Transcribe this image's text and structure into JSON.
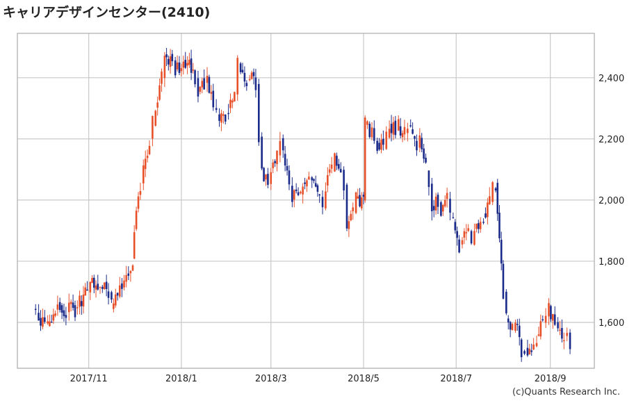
{
  "chart_data": {
    "type": "candlestick",
    "title": "キャリアデザインセンター(2410)",
    "copyright": "(c)Quants Research Inc.",
    "colors": {
      "up": "#e8502a",
      "down": "#1a2a8a",
      "grid": "#c8c8c8",
      "frame": "#aaaaaa"
    },
    "y_axis": {
      "side": "right",
      "range": [
        1450,
        2545
      ],
      "ticks": [
        1600,
        1800,
        2000,
        2200,
        2400
      ],
      "tick_labels": [
        "1,600",
        "1,800",
        "2,000",
        "2,200",
        "2,400"
      ]
    },
    "x_axis": {
      "range": [
        "2017-09-15",
        "2018-09-30"
      ],
      "ticks": [
        {
          "date": "2017-11-01",
          "label": "2017/11"
        },
        {
          "date": "2018-01-01",
          "label": "2018/1"
        },
        {
          "date": "2018-03-01",
          "label": "2018/3"
        },
        {
          "date": "2018-05-01",
          "label": "2018/5"
        },
        {
          "date": "2018-07-01",
          "label": "2018/7"
        },
        {
          "date": "2018-09-01",
          "label": "2018/9"
        }
      ]
    },
    "grid": true,
    "close_series": [
      [
        "2017-09-25",
        1640
      ],
      [
        "2017-09-27",
        1625
      ],
      [
        "2017-09-29",
        1610
      ],
      [
        "2017-10-03",
        1600
      ],
      [
        "2017-10-05",
        1590
      ],
      [
        "2017-10-10",
        1640
      ],
      [
        "2017-10-13",
        1650
      ],
      [
        "2017-10-17",
        1630
      ],
      [
        "2017-10-19",
        1660
      ],
      [
        "2017-10-23",
        1640
      ],
      [
        "2017-10-26",
        1670
      ],
      [
        "2017-10-31",
        1700
      ],
      [
        "2017-11-02",
        1730
      ],
      [
        "2017-11-07",
        1720
      ],
      [
        "2017-11-10",
        1710
      ],
      [
        "2017-11-14",
        1700
      ],
      [
        "2017-11-16",
        1650
      ],
      [
        "2017-11-20",
        1680
      ],
      [
        "2017-11-30",
        1800
      ],
      [
        "2017-12-01",
        1900
      ],
      [
        "2017-12-05",
        2050
      ],
      [
        "2017-12-07",
        2100
      ],
      [
        "2017-12-11",
        2200
      ],
      [
        "2017-12-13",
        2250
      ],
      [
        "2017-12-15",
        2300
      ],
      [
        "2017-12-19",
        2400
      ],
      [
        "2017-12-21",
        2480
      ],
      [
        "2017-12-26",
        2450
      ],
      [
        "2017-12-28",
        2420
      ],
      [
        "2018-01-05",
        2450
      ],
      [
        "2018-01-10",
        2400
      ],
      [
        "2018-01-12",
        2350
      ],
      [
        "2018-01-16",
        2380
      ],
      [
        "2018-01-18",
        2400
      ],
      [
        "2018-01-22",
        2300
      ],
      [
        "2018-01-24",
        2280
      ],
      [
        "2018-01-26",
        2260
      ],
      [
        "2018-01-30",
        2280
      ],
      [
        "2018-02-01",
        2300
      ],
      [
        "2018-02-05",
        2350
      ],
      [
        "2018-02-07",
        2450
      ],
      [
        "2018-02-09",
        2430
      ],
      [
        "2018-02-13",
        2390
      ],
      [
        "2018-02-15",
        2400
      ],
      [
        "2018-02-19",
        2380
      ],
      [
        "2018-02-21",
        2200
      ],
      [
        "2018-02-23",
        2100
      ],
      [
        "2018-02-27",
        2050
      ],
      [
        "2018-03-01",
        2100
      ],
      [
        "2018-03-05",
        2150
      ],
      [
        "2018-03-07",
        2200
      ],
      [
        "2018-03-09",
        2150
      ],
      [
        "2018-03-13",
        2050
      ],
      [
        "2018-03-15",
        2000
      ],
      [
        "2018-03-19",
        2030
      ],
      [
        "2018-03-22",
        2050
      ],
      [
        "2018-03-26",
        2080
      ],
      [
        "2018-03-28",
        2070
      ],
      [
        "2018-04-02",
        2010
      ],
      [
        "2018-04-04",
        1980
      ],
      [
        "2018-04-06",
        2050
      ],
      [
        "2018-04-10",
        2100
      ],
      [
        "2018-04-12",
        2150
      ],
      [
        "2018-04-16",
        2100
      ],
      [
        "2018-04-18",
        2050
      ],
      [
        "2018-04-20",
        1900
      ],
      [
        "2018-04-24",
        1960
      ],
      [
        "2018-04-26",
        2000
      ],
      [
        "2018-05-01",
        2000
      ],
      [
        "2018-05-02",
        2250
      ],
      [
        "2018-05-08",
        2200
      ],
      [
        "2018-05-10",
        2180
      ],
      [
        "2018-05-14",
        2170
      ],
      [
        "2018-05-16",
        2200
      ],
      [
        "2018-05-18",
        2250
      ],
      [
        "2018-05-22",
        2230
      ],
      [
        "2018-05-24",
        2240
      ],
      [
        "2018-05-28",
        2220
      ],
      [
        "2018-05-30",
        2250
      ],
      [
        "2018-06-01",
        2230
      ],
      [
        "2018-06-05",
        2180
      ],
      [
        "2018-06-07",
        2200
      ],
      [
        "2018-06-11",
        2100
      ],
      [
        "2018-06-13",
        2050
      ],
      [
        "2018-06-15",
        1980
      ],
      [
        "2018-06-19",
        1990
      ],
      [
        "2018-06-21",
        1960
      ],
      [
        "2018-06-25",
        2000
      ],
      [
        "2018-06-27",
        1950
      ],
      [
        "2018-06-29",
        1920
      ],
      [
        "2018-07-03",
        1850
      ],
      [
        "2018-07-05",
        1880
      ],
      [
        "2018-07-09",
        1900
      ],
      [
        "2018-07-11",
        1860
      ],
      [
        "2018-07-13",
        1900
      ],
      [
        "2018-07-17",
        1920
      ],
      [
        "2018-07-19",
        1950
      ],
      [
        "2018-07-23",
        2000
      ],
      [
        "2018-07-25",
        2040
      ],
      [
        "2018-07-27",
        2050
      ],
      [
        "2018-08-01",
        1700
      ],
      [
        "2018-08-03",
        1620
      ],
      [
        "2018-08-07",
        1580
      ],
      [
        "2018-08-09",
        1600
      ],
      [
        "2018-08-13",
        1510
      ],
      [
        "2018-08-15",
        1520
      ],
      [
        "2018-08-17",
        1500
      ],
      [
        "2018-08-21",
        1520
      ],
      [
        "2018-08-23",
        1550
      ],
      [
        "2018-08-27",
        1600
      ],
      [
        "2018-08-29",
        1620
      ],
      [
        "2018-08-31",
        1650
      ],
      [
        "2018-09-04",
        1600
      ],
      [
        "2018-09-06",
        1570
      ],
      [
        "2018-09-10",
        1550
      ],
      [
        "2018-09-12",
        1560
      ],
      [
        "2018-09-14",
        1500
      ]
    ]
  }
}
